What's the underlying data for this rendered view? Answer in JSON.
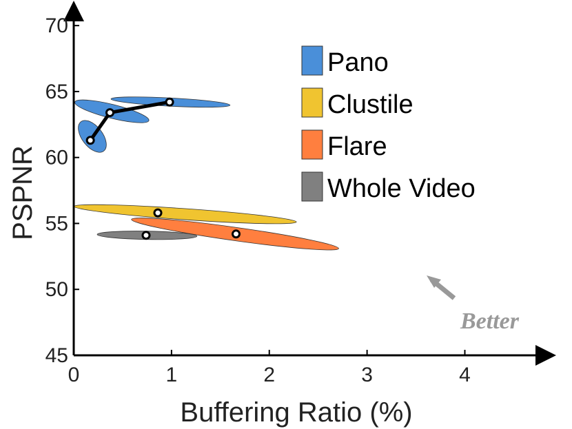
{
  "chart_data": {
    "type": "scatter",
    "xlabel": "Buffering Ratio (%)",
    "ylabel": "PSPNR",
    "xlim": [
      0,
      4.8
    ],
    "ylim": [
      45,
      71
    ],
    "xticks": [
      0,
      1,
      2,
      3,
      4
    ],
    "yticks": [
      45,
      50,
      55,
      60,
      65,
      70
    ],
    "legend_position": "top-right",
    "annotation": "Better",
    "series": [
      {
        "name": "Pano",
        "color": "#4a8fd9",
        "points": [
          {
            "x": 0.17,
            "y": 61.3
          },
          {
            "x": 0.37,
            "y": 63.4
          },
          {
            "x": 0.98,
            "y": 64.2
          }
        ],
        "connected": true,
        "spreads": [
          {
            "cx": 0.2,
            "cy": 61.6,
            "xspan": [
              0.0,
              0.38
            ],
            "yspan": [
              59.7,
              63.4
            ]
          },
          {
            "cx": 0.38,
            "cy": 63.5,
            "xspan": [
              0.0,
              0.78
            ],
            "yspan": [
              62.3,
              64.8
            ]
          },
          {
            "cx": 0.98,
            "cy": 64.2,
            "xspan": [
              0.38,
              1.6
            ],
            "yspan": [
              63.5,
              64.9
            ]
          }
        ]
      },
      {
        "name": "Clustile",
        "color": "#f0c430",
        "points": [
          {
            "x": 0.86,
            "y": 55.8
          }
        ],
        "connected": false,
        "spreads": [
          {
            "cx": 1.1,
            "cy": 55.7,
            "xspan": [
              0.0,
              2.28
            ],
            "yspan": [
              54.7,
              56.7
            ]
          }
        ]
      },
      {
        "name": "Flare",
        "color": "#ff7f3f",
        "points": [
          {
            "x": 1.66,
            "y": 54.2
          }
        ],
        "connected": false,
        "spreads": [
          {
            "cx": 1.7,
            "cy": 54.2,
            "xspan": [
              0.58,
              2.72
            ],
            "yspan": [
              53.0,
              55.4
            ]
          }
        ]
      },
      {
        "name": "Whole Video",
        "color": "#808080",
        "points": [
          {
            "x": 0.74,
            "y": 54.1
          }
        ],
        "connected": false,
        "spreads": [
          {
            "cx": 0.75,
            "cy": 54.1,
            "xspan": [
              0.24,
              1.26
            ],
            "yspan": [
              53.6,
              54.6
            ]
          }
        ]
      }
    ]
  }
}
